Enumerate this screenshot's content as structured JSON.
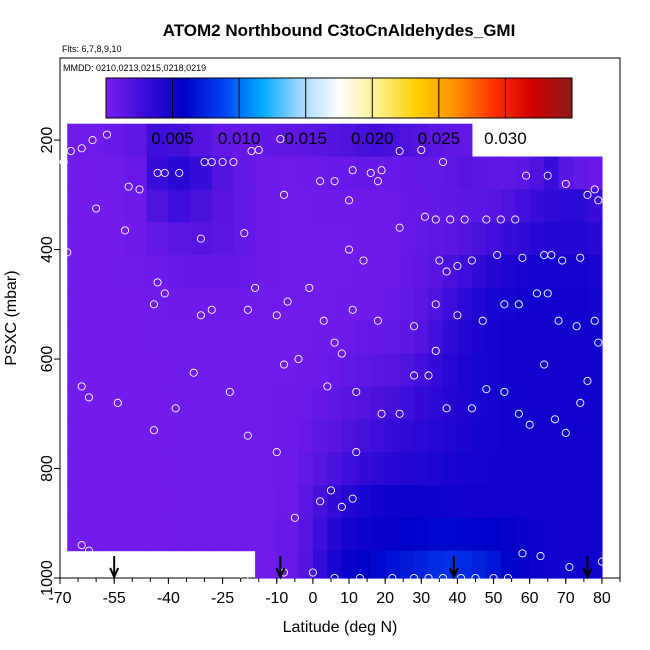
{
  "chart_data": {
    "type": "heatmap",
    "title": "ATOM2 Northbound C3toCnAldehydes_GMI",
    "subtitle_flights": "Flts: 6,7,8,9,10",
    "subtitle_dates": "MMDD: 0210,0213,0215,0218,0219",
    "xlabel": "Latitude (deg N)",
    "ylabel": "PSXC (mbar)",
    "xlim": [
      -70,
      85
    ],
    "ylim": [
      1000,
      50
    ],
    "y_reversed": true,
    "x_ticks": [
      -70,
      -55,
      -40,
      -25,
      -10,
      0,
      10,
      20,
      30,
      40,
      50,
      60,
      70,
      80
    ],
    "x_tick_labels": [
      "-70",
      "-55",
      "-40",
      "-25",
      "-10",
      "0",
      "10",
      "20",
      "30",
      "40",
      "50",
      "60",
      "70",
      "80"
    ],
    "y_ticks": [
      200,
      400,
      600,
      800,
      1000
    ],
    "y_tick_labels": [
      "200",
      "400",
      "600",
      "800",
      "1000"
    ],
    "colorbar": {
      "range": [
        0,
        0.035
      ],
      "ticks": [
        0.005,
        0.01,
        0.015,
        0.02,
        0.025,
        0.03
      ],
      "tick_labels": [
        "0.005",
        "0.010",
        "0.015",
        "0.020",
        "0.025",
        "0.030"
      ],
      "colors": [
        "#7a1ef0",
        "#3a0cd8",
        "#0000c8",
        "#0040f0",
        "#00a8ff",
        "#a0d8ff",
        "#ffffff",
        "#fff090",
        "#ffd000",
        "#ff9000",
        "#ff3000",
        "#d00000",
        "#8b1a1a"
      ]
    },
    "x_bins": [
      -68,
      -58,
      -52,
      -46,
      -40,
      -34,
      -28,
      -22,
      -16,
      -10,
      -4,
      0,
      4,
      8,
      12,
      16,
      20,
      24,
      28,
      32,
      36,
      40,
      44,
      48,
      52,
      56,
      60,
      64,
      68,
      72,
      76,
      80
    ],
    "y_bins": [
      170,
      230,
      290,
      350,
      410,
      470,
      530,
      590,
      650,
      710,
      770,
      830,
      890,
      950,
      1000
    ],
    "values": [
      [
        0.0005,
        0.0008,
        0.0012,
        0.0028,
        0.0025,
        0.0018,
        0.001,
        0.0009,
        0.0011,
        0.0012,
        0.0013,
        0.0015,
        0.0018,
        0.002,
        0.0024,
        0.0026,
        0.0023,
        0.002,
        0.0018,
        0.0014,
        0.0012,
        0.001,
        null,
        null,
        null,
        null,
        null,
        null,
        null,
        null,
        null
      ],
      [
        0.0004,
        0.0005,
        0.0008,
        0.003,
        0.0038,
        0.003,
        0.0018,
        0.001,
        0.0006,
        0.0005,
        0.0006,
        0.0007,
        0.0008,
        0.0008,
        0.0009,
        0.0008,
        0.0008,
        0.0009,
        0.001,
        0.001,
        0.0012,
        0.0016,
        0.0014,
        0.0012,
        0.0012,
        0.0014,
        0.002,
        0.003,
        0.0015,
        0.001,
        0.0008
      ],
      [
        0.0004,
        0.0004,
        0.0007,
        0.002,
        0.0028,
        0.0022,
        0.0016,
        0.001,
        0.0006,
        0.0005,
        0.0005,
        0.0006,
        0.0006,
        0.0006,
        0.0006,
        0.0007,
        0.0007,
        0.0008,
        0.0009,
        0.001,
        0.0011,
        0.0013,
        0.0014,
        0.0016,
        0.002,
        0.0026,
        0.003,
        0.0034,
        0.0036,
        0.0036,
        0.003
      ],
      [
        0.0004,
        0.0004,
        0.0006,
        0.001,
        0.0014,
        0.0016,
        0.0014,
        0.001,
        0.0006,
        0.0005,
        0.0005,
        0.0005,
        0.0005,
        0.0005,
        0.0006,
        0.0006,
        0.0007,
        0.0008,
        0.001,
        0.0012,
        0.0014,
        0.0018,
        0.0022,
        0.0026,
        0.003,
        0.0034,
        0.0038,
        0.004,
        0.004,
        0.004,
        0.0038
      ],
      [
        0.0004,
        0.0004,
        0.0005,
        0.0006,
        0.0008,
        0.0009,
        0.0009,
        0.0008,
        0.0006,
        0.0005,
        0.0005,
        0.0005,
        0.0005,
        0.0005,
        0.0006,
        0.0006,
        0.0007,
        0.0009,
        0.0012,
        0.0016,
        0.0022,
        0.0028,
        0.0034,
        0.004,
        0.0044,
        0.0046,
        0.0048,
        0.0048,
        0.0048,
        0.0048,
        0.0046
      ],
      [
        0.0004,
        0.0004,
        0.0004,
        0.0005,
        0.0006,
        0.0006,
        0.0006,
        0.0006,
        0.0005,
        0.0005,
        0.0005,
        0.0005,
        0.0005,
        0.0006,
        0.0006,
        0.0007,
        0.0008,
        0.001,
        0.0014,
        0.002,
        0.0028,
        0.0036,
        0.0042,
        0.0046,
        0.0048,
        0.005,
        0.005,
        0.005,
        0.005,
        0.005,
        0.0048
      ],
      [
        0.0004,
        0.0004,
        0.0004,
        0.0005,
        0.0005,
        0.0005,
        0.0005,
        0.0005,
        0.0005,
        0.0005,
        0.0005,
        0.0006,
        0.0006,
        0.0007,
        0.0008,
        0.0009,
        0.001,
        0.0013,
        0.0018,
        0.0026,
        0.0034,
        0.004,
        0.0045,
        0.0048,
        0.005,
        0.005,
        0.005,
        0.005,
        0.005,
        0.005,
        0.005
      ],
      [
        0.0004,
        0.0004,
        0.0004,
        0.0004,
        0.0005,
        0.0005,
        0.0005,
        0.0005,
        0.0005,
        0.0005,
        0.0006,
        0.0007,
        0.0008,
        0.001,
        0.0012,
        0.0014,
        0.0016,
        0.002,
        0.0026,
        0.0032,
        0.0038,
        0.0043,
        0.0046,
        0.0048,
        0.005,
        0.005,
        0.005,
        0.005,
        0.005,
        0.005,
        0.005
      ],
      [
        0.0004,
        0.0004,
        0.0004,
        0.0004,
        0.0005,
        0.0005,
        0.0005,
        0.0005,
        0.0005,
        0.0006,
        0.0007,
        0.0009,
        0.0012,
        0.0015,
        0.0018,
        0.0021,
        0.0024,
        0.0028,
        0.0032,
        0.0036,
        0.004,
        0.0043,
        0.0046,
        0.0048,
        0.005,
        0.005,
        0.005,
        0.005,
        0.005,
        0.005,
        0.005
      ],
      [
        0.0004,
        0.0004,
        0.0004,
        0.0004,
        0.0005,
        0.0005,
        0.0005,
        0.0005,
        0.0005,
        0.0006,
        0.0008,
        0.0012,
        0.0016,
        0.002,
        0.0024,
        0.0027,
        0.003,
        0.0033,
        0.0036,
        0.0039,
        0.0042,
        0.0045,
        0.0047,
        0.0048,
        0.005,
        0.005,
        0.005,
        0.005,
        0.005,
        0.005,
        0.005
      ],
      [
        0.0004,
        0.0004,
        0.0004,
        0.0004,
        0.0005,
        0.0005,
        0.0005,
        0.0005,
        0.0005,
        0.0006,
        0.001,
        0.0016,
        0.0022,
        0.0028,
        0.0032,
        0.0035,
        0.0038,
        0.004,
        0.0042,
        0.0044,
        0.0046,
        0.0047,
        0.0048,
        0.0049,
        0.005,
        0.005,
        0.005,
        0.005,
        0.005,
        0.005,
        0.005
      ],
      [
        0.0004,
        0.0004,
        0.0004,
        0.0004,
        0.0005,
        0.0005,
        0.0005,
        0.0005,
        0.0005,
        0.0007,
        0.0014,
        0.0024,
        0.0032,
        0.004,
        0.0046,
        0.005,
        0.0052,
        0.0053,
        0.0053,
        0.0052,
        0.0051,
        0.005,
        0.005,
        0.005,
        0.005,
        0.005,
        0.005,
        0.005,
        0.005,
        0.005,
        0.005
      ],
      [
        0.0004,
        0.0004,
        0.0004,
        0.0004,
        0.0005,
        0.0005,
        0.0005,
        0.0005,
        0.0005,
        0.0008,
        0.0016,
        0.0028,
        0.004,
        0.0048,
        0.0052,
        0.0054,
        0.0056,
        0.0058,
        0.006,
        0.0062,
        0.0062,
        0.0061,
        0.006,
        0.0058,
        0.0056,
        0.0054,
        0.0052,
        0.005,
        0.005,
        0.005,
        0.005
      ],
      [
        null,
        null,
        null,
        null,
        null,
        null,
        null,
        null,
        0.0005,
        0.0008,
        0.0018,
        0.0032,
        0.0046,
        0.0054,
        0.0058,
        0.0062,
        0.0066,
        0.007,
        0.0074,
        0.0078,
        0.008,
        0.0078,
        0.0074,
        0.0068,
        0.006,
        0.0056,
        0.0052,
        0.005,
        0.005,
        0.005,
        0.005
      ]
    ],
    "observations": [
      [
        -69,
        240
      ],
      [
        -67,
        220
      ],
      [
        -64,
        215
      ],
      [
        -61,
        200
      ],
      [
        -57,
        190
      ],
      [
        -68,
        405
      ],
      [
        -60,
        325
      ],
      [
        -51,
        285
      ],
      [
        -48,
        290
      ],
      [
        -43,
        260
      ],
      [
        -41,
        260
      ],
      [
        -37,
        260
      ],
      [
        -30,
        240
      ],
      [
        -28,
        240
      ],
      [
        -25,
        240
      ],
      [
        -22,
        240
      ],
      [
        -17,
        220
      ],
      [
        -15,
        218
      ],
      [
        -9,
        198
      ],
      [
        -52,
        365
      ],
      [
        -43,
        460
      ],
      [
        -41,
        480
      ],
      [
        -44,
        500
      ],
      [
        -31,
        380
      ],
      [
        -19,
        370
      ],
      [
        -16,
        470
      ],
      [
        -18,
        510
      ],
      [
        -31,
        520
      ],
      [
        -28,
        510
      ],
      [
        -10,
        520
      ],
      [
        -7,
        495
      ],
      [
        -1,
        470
      ],
      [
        3,
        530
      ],
      [
        6,
        570
      ],
      [
        8,
        590
      ],
      [
        11,
        510
      ],
      [
        -8,
        300
      ],
      [
        2,
        275
      ],
      [
        6,
        275
      ],
      [
        10,
        310
      ],
      [
        11,
        255
      ],
      [
        16,
        260
      ],
      [
        18,
        275
      ],
      [
        19,
        255
      ],
      [
        24,
        220
      ],
      [
        30,
        218
      ],
      [
        36,
        240
      ],
      [
        34,
        345
      ],
      [
        38,
        345
      ],
      [
        42,
        345
      ],
      [
        48,
        345
      ],
      [
        52,
        345
      ],
      [
        56,
        345
      ],
      [
        59,
        265
      ],
      [
        65,
        265
      ],
      [
        70,
        280
      ],
      [
        78,
        290
      ],
      [
        76,
        300
      ],
      [
        79,
        310
      ],
      [
        35,
        420
      ],
      [
        37,
        440
      ],
      [
        40,
        430
      ],
      [
        44,
        420
      ],
      [
        51,
        410
      ],
      [
        58,
        415
      ],
      [
        64,
        410
      ],
      [
        66,
        410
      ],
      [
        69,
        420
      ],
      [
        74,
        415
      ],
      [
        31,
        340
      ],
      [
        24,
        360
      ],
      [
        14,
        420
      ],
      [
        10,
        400
      ],
      [
        18,
        530
      ],
      [
        28,
        540
      ],
      [
        34,
        500
      ],
      [
        40,
        520
      ],
      [
        47,
        530
      ],
      [
        53,
        500
      ],
      [
        57,
        500
      ],
      [
        62,
        480
      ],
      [
        65,
        480
      ],
      [
        68,
        530
      ],
      [
        73,
        540
      ],
      [
        78,
        530
      ],
      [
        79,
        570
      ],
      [
        -8,
        610
      ],
      [
        -4,
        600
      ],
      [
        4,
        650
      ],
      [
        12,
        660
      ],
      [
        19,
        700
      ],
      [
        24,
        700
      ],
      [
        28,
        630
      ],
      [
        32,
        630
      ],
      [
        34,
        585
      ],
      [
        37,
        690
      ],
      [
        44,
        690
      ],
      [
        48,
        655
      ],
      [
        53,
        660
      ],
      [
        57,
        700
      ],
      [
        60,
        720
      ],
      [
        64,
        610
      ],
      [
        67,
        710
      ],
      [
        70,
        735
      ],
      [
        74,
        680
      ],
      [
        76,
        640
      ],
      [
        -62,
        670
      ],
      [
        -64,
        650
      ],
      [
        -54,
        680
      ],
      [
        -44,
        730
      ],
      [
        -38,
        690
      ],
      [
        -33,
        625
      ],
      [
        -23,
        660
      ],
      [
        -18,
        740
      ],
      [
        -10,
        770
      ],
      [
        -5,
        890
      ],
      [
        2,
        860
      ],
      [
        5,
        840
      ],
      [
        8,
        870
      ],
      [
        11,
        855
      ],
      [
        12,
        770
      ],
      [
        -62,
        950
      ],
      [
        -64,
        940
      ],
      [
        -19,
        1000
      ],
      [
        -8,
        990
      ],
      [
        0,
        990
      ],
      [
        6,
        1000
      ],
      [
        13,
        1000
      ],
      [
        22,
        1000
      ],
      [
        28,
        1000
      ],
      [
        32,
        1000
      ],
      [
        36,
        1000
      ],
      [
        41,
        1000
      ],
      [
        45,
        1000
      ],
      [
        50,
        1000
      ],
      [
        54,
        1000
      ],
      [
        58,
        955
      ],
      [
        63,
        960
      ],
      [
        71,
        980
      ],
      [
        80,
        970
      ]
    ],
    "arrows_latitude": [
      -55,
      -9,
      39,
      76
    ]
  }
}
